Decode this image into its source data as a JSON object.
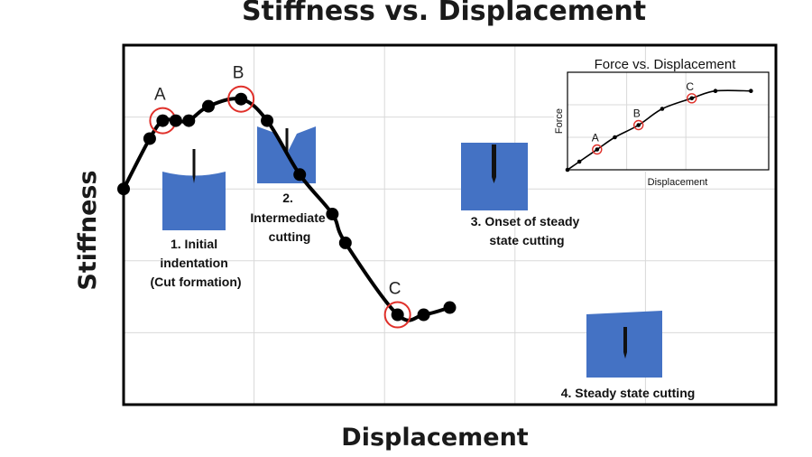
{
  "chart_data": {
    "type": "line",
    "title": "Stiffness vs. Displacement",
    "xlabel": "Displacement",
    "ylabel": "Stiffness",
    "grid": true,
    "xlim": [
      0,
      10
    ],
    "ylim": [
      0,
      10
    ],
    "series": [
      {
        "x": [
          0,
          0.4,
          0.6,
          0.8,
          1.0,
          1.3,
          1.8,
          2.2,
          2.7,
          3.2,
          3.4,
          4.2,
          4.6,
          5.0
        ],
        "y": [
          6.0,
          7.4,
          7.9,
          7.9,
          7.9,
          8.3,
          8.5,
          7.9,
          6.4,
          5.3,
          4.5,
          2.5,
          2.5,
          2.7
        ]
      }
    ],
    "highlighted_points": [
      {
        "label": "A",
        "index": 2
      },
      {
        "label": "B",
        "index": 6
      },
      {
        "label": "C",
        "index": 11
      }
    ],
    "stage_labels": [
      {
        "lines": [
          "1. Initial",
          "indentation",
          "(Cut formation)"
        ]
      },
      {
        "lines": [
          "2.",
          "Intermediate",
          "cutting"
        ]
      },
      {
        "lines": [
          "3. Onset of steady",
          "state cutting"
        ]
      },
      {
        "lines": [
          "4. Steady state cutting"
        ]
      }
    ],
    "inset": {
      "type": "line",
      "title": "Force vs. Displacement",
      "xlabel": "Displacement",
      "ylabel": "Force",
      "series": [
        {
          "x": [
            0,
            0.1,
            0.25,
            0.4,
            0.6,
            0.8,
            1.05,
            1.25,
            1.55
          ],
          "y": [
            0.0,
            0.1,
            0.25,
            0.4,
            0.55,
            0.75,
            0.88,
            0.97,
            0.97
          ]
        }
      ],
      "highlighted_points": [
        {
          "label": "A",
          "index": 2
        },
        {
          "label": "B",
          "index": 4
        },
        {
          "label": "C",
          "index": 6
        }
      ]
    }
  },
  "colors": {
    "line": "#000000",
    "highlight": "#e0302a",
    "material": "#4472c4",
    "grid": "#d9d9d9"
  }
}
